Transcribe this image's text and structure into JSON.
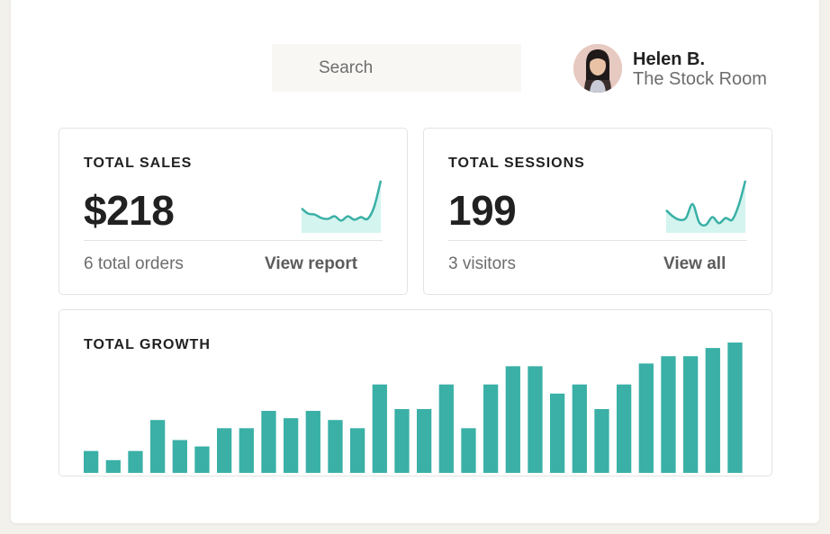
{
  "search": {
    "placeholder": "Search"
  },
  "user": {
    "name": "Helen B.",
    "store": "The Stock Room"
  },
  "sales": {
    "title": "TOTAL SALES",
    "value": "$218",
    "subtext": "6 total orders",
    "link": "View report"
  },
  "sessions": {
    "title": "TOTAL SESSIONS",
    "value": "199",
    "subtext": "3 visitors",
    "link": "View all"
  },
  "growth": {
    "title": "TOTAL GROWTH"
  },
  "colors": {
    "accent": "#3ab0a6",
    "spark_fill": "#d4f4ef",
    "text": "#212121",
    "muted": "#6d6d6d"
  },
  "chart_data": [
    {
      "type": "area",
      "name": "sales-sparkline",
      "x": [
        0,
        1,
        2,
        3,
        4,
        5,
        6,
        7,
        8,
        9,
        10,
        11,
        12
      ],
      "values": [
        26,
        20,
        19,
        15,
        14,
        17,
        12,
        17,
        13,
        16,
        14,
        28,
        58
      ],
      "ylim": [
        0,
        60
      ]
    },
    {
      "type": "area",
      "name": "sessions-sparkline",
      "x": [
        0,
        1,
        2,
        3,
        4,
        5,
        6,
        7,
        8,
        9,
        10,
        11,
        12
      ],
      "values": [
        24,
        17,
        13,
        15,
        31,
        10,
        7,
        16,
        9,
        15,
        13,
        30,
        58
      ],
      "ylim": [
        0,
        60
      ]
    },
    {
      "type": "bar",
      "name": "total-growth",
      "values": [
        24,
        14,
        24,
        58,
        36,
        29,
        49,
        49,
        68,
        60,
        68,
        58,
        49,
        97,
        70,
        70,
        97,
        49,
        97,
        117,
        117,
        87,
        97,
        70,
        97,
        120,
        128,
        128,
        137,
        143
      ],
      "ylim": [
        0,
        145
      ]
    }
  ]
}
